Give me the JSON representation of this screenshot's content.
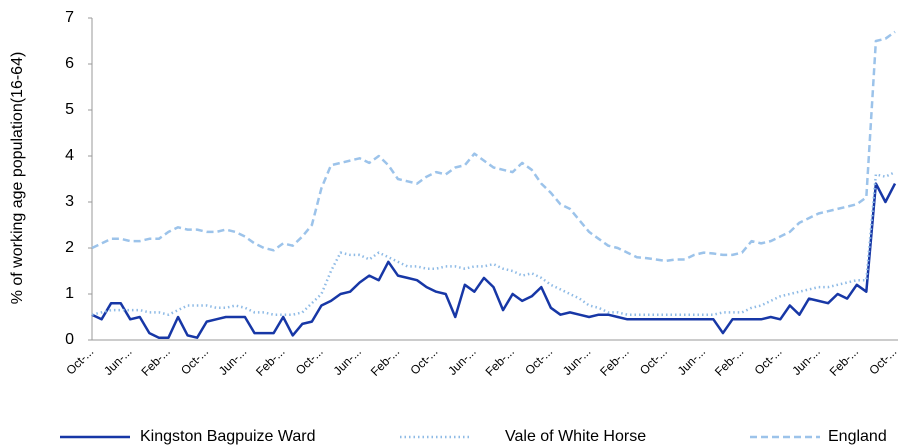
{
  "chart_data": {
    "type": "line",
    "y_label": "% of working age population(16-64)",
    "categories": [
      "Oct-...",
      null,
      null,
      null,
      "Jun-...",
      null,
      null,
      null,
      "Feb-...",
      null,
      null,
      null,
      "Oct-...",
      null,
      null,
      null,
      "Jun-...",
      null,
      null,
      null,
      "Feb-...",
      null,
      null,
      null,
      "Oct-...",
      null,
      null,
      null,
      "Jun-...",
      null,
      null,
      null,
      "Feb-...",
      null,
      null,
      null,
      "Oct-...",
      null,
      null,
      null,
      "Jun-...",
      null,
      null,
      null,
      "Feb-...",
      null,
      null,
      null,
      "Oct-...",
      null,
      null,
      null,
      "Jun-...",
      null,
      null,
      null,
      "Feb-...",
      null,
      null,
      null,
      "Oct-...",
      null,
      null,
      null,
      "Jun-...",
      null,
      null,
      null,
      "Feb-...",
      null,
      null,
      null,
      "Oct-...",
      null,
      null,
      null,
      "Jun-...",
      null,
      null,
      null,
      "Feb-...",
      null,
      null,
      null,
      "Oct-..."
    ],
    "series": [
      {
        "name": "Kingston Bagpuize Ward",
        "color": "#1737a6",
        "style": "solid",
        "values": [
          0.55,
          0.45,
          0.8,
          0.8,
          0.45,
          0.5,
          0.15,
          0.05,
          0.05,
          0.5,
          0.1,
          0.05,
          0.4,
          0.45,
          0.5,
          0.5,
          0.5,
          0.15,
          0.15,
          0.15,
          0.5,
          0.1,
          0.35,
          0.4,
          0.75,
          0.85,
          1.0,
          1.05,
          1.25,
          1.4,
          1.3,
          1.7,
          1.4,
          1.35,
          1.3,
          1.15,
          1.05,
          1.0,
          0.5,
          1.2,
          1.05,
          1.35,
          1.15,
          0.65,
          1.0,
          0.85,
          0.95,
          1.15,
          0.7,
          0.55,
          0.6,
          0.55,
          0.5,
          0.55,
          0.55,
          0.5,
          0.45,
          0.45,
          0.45,
          0.45,
          0.45,
          0.45,
          0.45,
          0.45,
          0.45,
          0.45,
          0.15,
          0.45,
          0.45,
          0.45,
          0.45,
          0.5,
          0.45,
          0.75,
          0.55,
          0.9,
          0.85,
          0.8,
          1.0,
          0.9,
          1.2,
          1.05,
          3.4,
          3.0,
          3.4
        ]
      },
      {
        "name": "Vale of White Horse",
        "color": "#8fbbe6",
        "style": "dotted",
        "values": [
          0.55,
          0.6,
          0.65,
          0.65,
          0.65,
          0.65,
          0.6,
          0.6,
          0.55,
          0.65,
          0.75,
          0.75,
          0.75,
          0.7,
          0.7,
          0.75,
          0.7,
          0.6,
          0.6,
          0.55,
          0.55,
          0.55,
          0.6,
          0.8,
          1.0,
          1.5,
          1.9,
          1.85,
          1.85,
          1.75,
          1.9,
          1.8,
          1.7,
          1.6,
          1.6,
          1.55,
          1.55,
          1.6,
          1.6,
          1.55,
          1.6,
          1.6,
          1.65,
          1.55,
          1.5,
          1.4,
          1.45,
          1.35,
          1.2,
          1.1,
          1.0,
          0.9,
          0.75,
          0.7,
          0.6,
          0.6,
          0.55,
          0.55,
          0.55,
          0.55,
          0.55,
          0.55,
          0.55,
          0.55,
          0.55,
          0.55,
          0.6,
          0.6,
          0.6,
          0.7,
          0.75,
          0.85,
          0.95,
          1.0,
          1.05,
          1.1,
          1.15,
          1.15,
          1.2,
          1.25,
          1.3,
          1.3,
          3.6,
          3.55,
          3.65
        ]
      },
      {
        "name": "England",
        "color": "#9cc3ea",
        "style": "dashed",
        "values": [
          2.0,
          2.1,
          2.2,
          2.2,
          2.15,
          2.15,
          2.2,
          2.2,
          2.35,
          2.45,
          2.4,
          2.4,
          2.35,
          2.35,
          2.4,
          2.35,
          2.25,
          2.1,
          2.0,
          1.95,
          2.1,
          2.05,
          2.25,
          2.5,
          3.3,
          3.8,
          3.85,
          3.9,
          3.95,
          3.85,
          4.0,
          3.8,
          3.5,
          3.45,
          3.4,
          3.55,
          3.65,
          3.6,
          3.75,
          3.8,
          4.05,
          3.9,
          3.75,
          3.7,
          3.65,
          3.85,
          3.7,
          3.4,
          3.2,
          2.95,
          2.85,
          2.6,
          2.35,
          2.2,
          2.05,
          2.0,
          1.9,
          1.8,
          1.78,
          1.75,
          1.72,
          1.75,
          1.75,
          1.85,
          1.9,
          1.88,
          1.85,
          1.85,
          1.9,
          2.15,
          2.1,
          2.15,
          2.25,
          2.35,
          2.55,
          2.65,
          2.75,
          2.8,
          2.85,
          2.9,
          2.95,
          3.1,
          6.5,
          6.55,
          6.7
        ]
      }
    ],
    "ylim": [
      0,
      7
    ],
    "yticks": [
      0,
      1,
      2,
      3,
      4,
      5,
      6,
      7
    ],
    "legend": "bottom"
  }
}
